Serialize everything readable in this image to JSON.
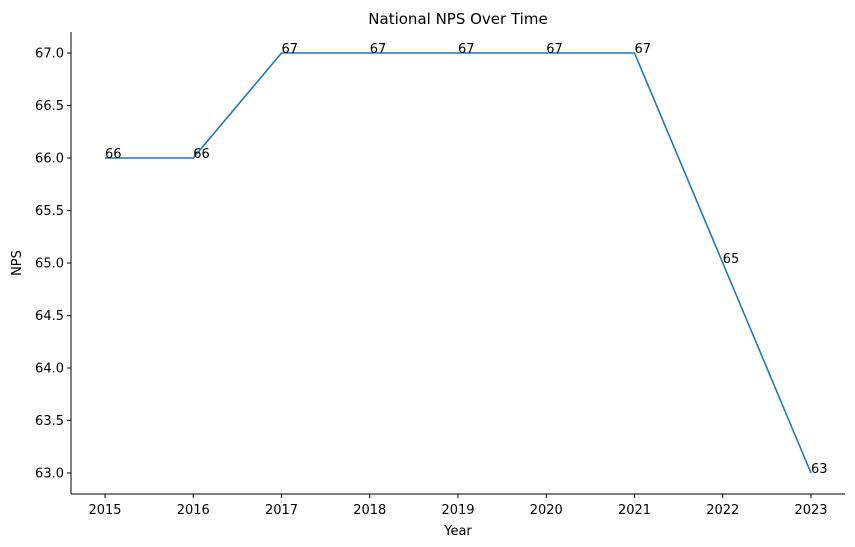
{
  "chart_data": {
    "type": "line",
    "title": "National NPS Over Time",
    "xlabel": "Year",
    "ylabel": "NPS",
    "x": [
      "2015",
      "2016",
      "2017",
      "2018",
      "2019",
      "2020",
      "2021",
      "2022",
      "2023"
    ],
    "series": [
      {
        "values": [
          66,
          66,
          67,
          67,
          67,
          67,
          67,
          65,
          63
        ],
        "data_labels": [
          "66",
          "66",
          "67",
          "67",
          "67",
          "67",
          "67",
          "65",
          "63"
        ],
        "color": "#1f77b4"
      }
    ],
    "ylim": [
      62.8,
      67.2
    ],
    "yticks": [
      "63.0",
      "63.5",
      "64.0",
      "64.5",
      "65.0",
      "65.5",
      "66.0",
      "66.5",
      "67.0"
    ],
    "ytick_values": [
      63.0,
      63.5,
      64.0,
      64.5,
      65.0,
      65.5,
      66.0,
      66.5,
      67.0
    ],
    "grid": false,
    "legend": "none",
    "spines": "left-bottom"
  }
}
